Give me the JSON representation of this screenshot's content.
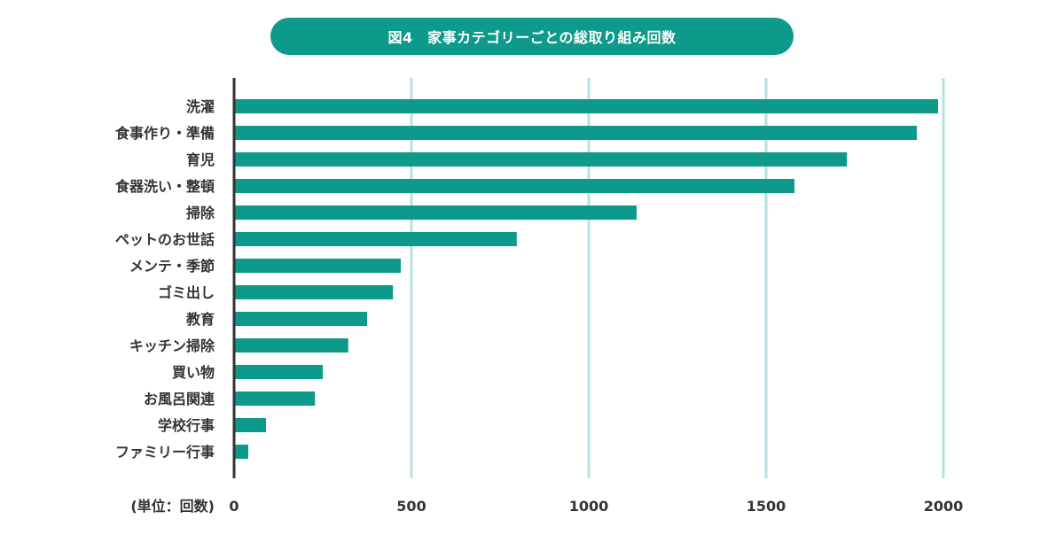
{
  "title": "図4　家事カテゴリーごとの総取り組み回数",
  "colors": {
    "bar": "#0e9a8a",
    "title_bg": "#0e9a8a",
    "grid": "#b7e0e1",
    "axis": "#333333"
  },
  "chart_data": {
    "type": "bar",
    "orientation": "horizontal",
    "title": "図4　家事カテゴリーごとの総取り組み回数",
    "unit_label": "(単位：回数)",
    "categories": [
      "洗濯",
      "食事作り・準備",
      "育児",
      "食器洗い・整頓",
      "掃除",
      "ペットのお世話",
      "メンテ・季節",
      "ゴミ出し",
      "教育",
      "キッチン掃除",
      "買い物",
      "お風呂関連",
      "学校行事",
      "ファミリー行事"
    ],
    "values": [
      1985,
      1925,
      1728,
      1580,
      1135,
      797,
      470,
      448,
      375,
      322,
      250,
      228,
      90,
      40
    ],
    "xlim": [
      0,
      2000
    ],
    "ticks": [
      0,
      500,
      1000,
      1500,
      2000
    ],
    "tick_labels": [
      "0",
      "500",
      "1000",
      "1500",
      "2000"
    ],
    "grid": true
  }
}
